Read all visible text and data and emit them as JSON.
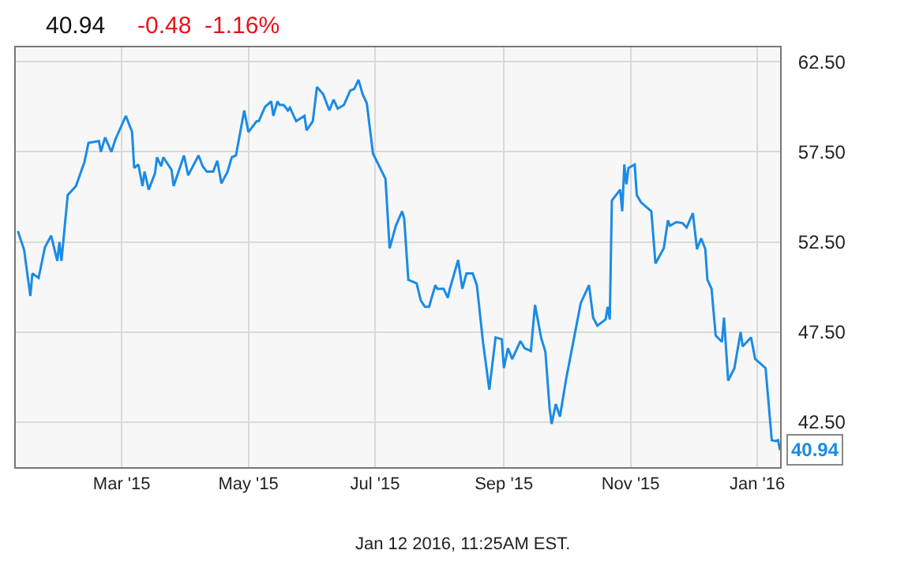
{
  "chart_data": {
    "type": "line",
    "title": "40.94",
    "subtitle": "-0.48  -1.16%",
    "annotations": [
      {
        "text": "40.94",
        "x": "2016-01-12",
        "y": 40.94
      },
      "Jan 12 2016, 11:25AM EST."
    ],
    "x": [
      "2015-01-10",
      "2015-01-13",
      "2015-01-16",
      "2015-01-17",
      "2015-01-20",
      "2015-01-23",
      "2015-01-26",
      "2015-01-29",
      "2015-01-30",
      "2015-01-31",
      "2015-02-03",
      "2015-02-07",
      "2015-02-10",
      "2015-02-11",
      "2015-02-13",
      "2015-02-18",
      "2015-02-19",
      "2015-02-21",
      "2015-02-24",
      "2015-02-26",
      "2015-03-03",
      "2015-03-06",
      "2015-03-07",
      "2015-03-09",
      "2015-03-11",
      "2015-03-12",
      "2015-03-14",
      "2015-03-17",
      "2015-03-18",
      "2015-03-20",
      "2015-03-21",
      "2015-03-25",
      "2015-03-26",
      "2015-03-31",
      "2015-04-02",
      "2015-04-07",
      "2015-04-09",
      "2015-04-11",
      "2015-04-14",
      "2015-04-16",
      "2015-04-18",
      "2015-04-21",
      "2015-04-23",
      "2015-04-25",
      "2015-04-29",
      "2015-05-01",
      "2015-05-05",
      "2015-05-06",
      "2015-05-09",
      "2015-05-12",
      "2015-05-13",
      "2015-05-15",
      "2015-05-16",
      "2015-05-18",
      "2015-05-20",
      "2015-05-21",
      "2015-05-24",
      "2015-05-28",
      "2015-05-29",
      "2015-06-01",
      "2015-06-03",
      "2015-06-06",
      "2015-06-09",
      "2015-06-11",
      "2015-06-13",
      "2015-06-16",
      "2015-06-19",
      "2015-06-21",
      "2015-06-23",
      "2015-06-25",
      "2015-06-27",
      "2015-06-30",
      "2015-07-03",
      "2015-07-06",
      "2015-07-08",
      "2015-07-11",
      "2015-07-14",
      "2015-07-15",
      "2015-07-17",
      "2015-07-21",
      "2015-07-23",
      "2015-07-25",
      "2015-07-27",
      "2015-07-30",
      "2015-07-31",
      "2015-08-03",
      "2015-08-05",
      "2015-08-06",
      "2015-08-10",
      "2015-08-12",
      "2015-08-14",
      "2015-08-17",
      "2015-08-19",
      "2015-08-22",
      "2015-08-25",
      "2015-08-28",
      "2015-08-31",
      "2015-09-01",
      "2015-09-03",
      "2015-09-05",
      "2015-09-09",
      "2015-09-11",
      "2015-09-14",
      "2015-09-16",
      "2015-09-19",
      "2015-09-21",
      "2015-09-23",
      "2015-09-24",
      "2015-09-26",
      "2015-09-28",
      "2015-10-01",
      "2015-10-06",
      "2015-10-08",
      "2015-10-12",
      "2015-10-14",
      "2015-10-16",
      "2015-10-20",
      "2015-10-21",
      "2015-10-22",
      "2015-10-23",
      "2015-10-27",
      "2015-10-28",
      "2015-10-29",
      "2015-10-30",
      "2015-10-31",
      "2015-11-03",
      "2015-11-04",
      "2015-11-06",
      "2015-11-11",
      "2015-11-13",
      "2015-11-17",
      "2015-11-19",
      "2015-11-20",
      "2015-11-23",
      "2015-11-26",
      "2015-11-28",
      "2015-12-01",
      "2015-12-03",
      "2015-12-05",
      "2015-12-07",
      "2015-12-08",
      "2015-12-10",
      "2015-12-12",
      "2015-12-15",
      "2015-12-16",
      "2015-12-18",
      "2015-12-21",
      "2015-12-24",
      "2015-12-25",
      "2015-12-29",
      "2015-12-31",
      "2016-01-05",
      "2016-01-08",
      "2016-01-10",
      "2016-01-11",
      "2016-01-12"
    ],
    "series": [
      {
        "color": "#1a8be6",
        "values": [
          53.1,
          52.06,
          49.5,
          50.75,
          50.5,
          52.2,
          52.85,
          51.45,
          52.5,
          51.45,
          55.1,
          55.6,
          56.6,
          56.9,
          58.0,
          58.1,
          57.5,
          58.3,
          57.5,
          58.2,
          59.5,
          58.6,
          56.6,
          56.8,
          55.6,
          56.4,
          55.4,
          56.3,
          57.2,
          56.7,
          57.2,
          56.5,
          55.6,
          57.3,
          56.2,
          57.3,
          56.7,
          56.4,
          56.4,
          57.0,
          55.75,
          56.4,
          57.2,
          57.3,
          59.8,
          58.6,
          59.2,
          59.2,
          60.0,
          60.3,
          59.5,
          60.3,
          60.1,
          60.1,
          59.8,
          59.95,
          59.2,
          59.5,
          58.7,
          59.2,
          61.1,
          60.7,
          59.8,
          60.4,
          59.9,
          60.1,
          60.9,
          61.0,
          61.5,
          60.7,
          60.2,
          57.4,
          56.7,
          56.0,
          52.15,
          53.4,
          54.2,
          53.8,
          50.4,
          50.2,
          49.25,
          48.9,
          48.9,
          50.1,
          49.9,
          49.9,
          49.4,
          49.9,
          51.5,
          49.9,
          50.75,
          50.75,
          50.1,
          46.9,
          44.3,
          47.2,
          47.1,
          45.5,
          46.6,
          46.0,
          47.0,
          46.6,
          46.45,
          49.0,
          47.15,
          46.4,
          43.3,
          42.4,
          43.5,
          42.8,
          44.9,
          47.9,
          49.1,
          50.1,
          48.3,
          47.85,
          48.2,
          48.9,
          48.2,
          54.8,
          55.4,
          54.2,
          56.8,
          55.7,
          56.6,
          56.8,
          55.1,
          54.7,
          54.2,
          51.3,
          52.15,
          53.7,
          53.4,
          53.6,
          53.55,
          53.3,
          54.1,
          52.1,
          52.7,
          52.1,
          50.4,
          49.9,
          47.3,
          46.95,
          48.3,
          44.8,
          45.5,
          47.5,
          46.7,
          47.2,
          46.0,
          45.5,
          41.5,
          41.45,
          41.5,
          40.94
        ]
      }
    ],
    "xlim": [
      "2015-01-09",
      "2016-01-12"
    ],
    "xticks": [
      {
        "value": "2015-03-01",
        "label": "Mar '15"
      },
      {
        "value": "2015-05-01",
        "label": "May '15"
      },
      {
        "value": "2015-07-01",
        "label": "Jul '15"
      },
      {
        "value": "2015-09-01",
        "label": "Sep '15"
      },
      {
        "value": "2015-11-01",
        "label": "Nov '15"
      },
      {
        "value": "2016-01-01",
        "label": "Jan '16"
      }
    ],
    "ylim": [
      40,
      63.3
    ],
    "yticks": [
      {
        "value": 42.5,
        "label": "42.50"
      },
      {
        "value": 47.5,
        "label": "47.50"
      },
      {
        "value": 52.5,
        "label": "52.50"
      },
      {
        "value": 57.5,
        "label": "57.50"
      },
      {
        "value": 62.5,
        "label": "62.50"
      }
    ],
    "grid": true,
    "legend": false,
    "marker": "none",
    "line_style": "solid"
  }
}
